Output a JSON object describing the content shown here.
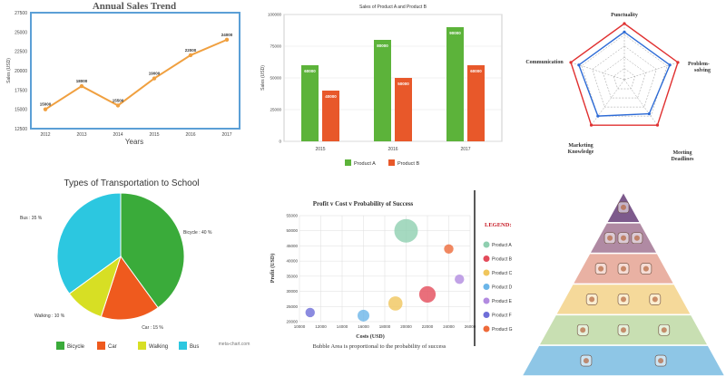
{
  "charts": {
    "line": {
      "chart_data": {
        "type": "line",
        "title": "Annual Sales Trend",
        "xlabel": "Years",
        "ylabel": "Sales (USD)",
        "categories": [
          "2012",
          "2013",
          "2014",
          "2015",
          "2016",
          "2017"
        ],
        "values": [
          15000,
          18000,
          15500,
          19000,
          22000,
          24000
        ],
        "value_labels": [
          "15000",
          "18000",
          "15500",
          "19000",
          "22000",
          "24000"
        ],
        "ylim": [
          12500,
          27500
        ],
        "yticks": [
          "12500",
          "15000",
          "17500",
          "20000",
          "22500",
          "25000",
          "27500"
        ],
        "grid": false,
        "color": "#f0a040"
      }
    },
    "bar": {
      "chart_data": {
        "type": "bar",
        "title": "Sales of Product A and Product B",
        "ylabel": "Sales (USD)",
        "categories": [
          "2015",
          "2016",
          "2017"
        ],
        "series": [
          {
            "name": "Product A",
            "values": [
              60000,
              80000,
              90000
            ],
            "labels": [
              "60000",
              "80000",
              "90000"
            ],
            "color": "#5cb33a"
          },
          {
            "name": "Product B",
            "values": [
              40000,
              50000,
              60000
            ],
            "labels": [
              "40000",
              "50000",
              "60000"
            ],
            "color": "#e8582a"
          }
        ],
        "ylim": [
          0,
          100000
        ],
        "yticks": [
          "0",
          "25000",
          "50000",
          "75000",
          "100000"
        ],
        "legend": "bottom"
      }
    },
    "radar": {
      "chart_data": {
        "type": "radar",
        "axes": [
          "Punctuality",
          "Problem-solving",
          "Meeting Deadlines",
          "Marketing Knowledge",
          "Communication"
        ],
        "series": [
          {
            "values": [
              1.0,
              1.0,
              1.0,
              1.0,
              1.0
            ],
            "color": "#e03030"
          },
          {
            "values": [
              0.85,
              0.85,
              0.75,
              0.8,
              0.85
            ],
            "color": "#2d6bd6"
          }
        ],
        "rings": 5
      }
    },
    "pie": {
      "chart_data": {
        "type": "pie",
        "title": "Types of Transportation to School",
        "slices": [
          {
            "name": "Bicycle",
            "value": 40,
            "label": "Bicycle : 40 %",
            "color": "#3aab3a"
          },
          {
            "name": "Car",
            "value": 15,
            "label": "Car : 15 %",
            "color": "#ef5a1e"
          },
          {
            "name": "Walking",
            "value": 10,
            "label": "Walking : 10 %",
            "color": "#d7df24"
          },
          {
            "name": "Bus",
            "value": 35,
            "label": "Bus : 35 %",
            "color": "#2cc7e0"
          }
        ],
        "legend": "bottom",
        "credit": "meta-chart.com"
      }
    },
    "bubble": {
      "chart_data": {
        "type": "scatter",
        "title": "Profit v Cost v Probability of Success",
        "subtitle": "Bubble Area is proportional to the probability of success",
        "xlabel": "Costs (USD)",
        "ylabel": "Profit (USD)",
        "xlim": [
          10000,
          26000
        ],
        "ylim": [
          20000,
          55000
        ],
        "xticks": [
          "10000",
          "12000",
          "14000",
          "16000",
          "18000",
          "20000",
          "22000",
          "24000",
          "26000"
        ],
        "yticks": [
          "20000",
          "25000",
          "30000",
          "35000",
          "40000",
          "45000",
          "50000",
          "55000"
        ],
        "legend_title": "LEGEND:",
        "points": [
          {
            "name": "Product A",
            "x": 20000,
            "y": 50000,
            "size": 10,
            "color": "#8fcfb0"
          },
          {
            "name": "Product B",
            "x": 22000,
            "y": 29000,
            "size": 7,
            "color": "#e34b5a"
          },
          {
            "name": "Product C",
            "x": 19000,
            "y": 26000,
            "size": 6,
            "color": "#f0c65c"
          },
          {
            "name": "Product D",
            "x": 16000,
            "y": 22000,
            "size": 5,
            "color": "#6bb5e8"
          },
          {
            "name": "Product E",
            "x": 25000,
            "y": 34000,
            "size": 4,
            "color": "#b28be0"
          },
          {
            "name": "Product F",
            "x": 11000,
            "y": 23000,
            "size": 4,
            "color": "#6e6ed8"
          },
          {
            "name": "Product G",
            "x": 24000,
            "y": 44000,
            "size": 4,
            "color": "#ee6a3a"
          }
        ]
      }
    }
  },
  "food_pyramid": {
    "tiers": [
      {
        "color": "#7d5a8c",
        "items": [
          "bottle-icon"
        ]
      },
      {
        "color": "#b08aa3",
        "items": [
          "honey-icon",
          "oil-bottle-icon",
          "butter-icon"
        ]
      },
      {
        "color": "#e9b1a3",
        "items": [
          "sausage-icon",
          "egg-icon",
          "nuts-icon"
        ]
      },
      {
        "color": "#f5d99a",
        "items": [
          "cheese-icon",
          "milk-icon",
          "yogurt-icon"
        ]
      },
      {
        "color": "#c8dfb2",
        "items": [
          "grains-icon",
          "bread-icon",
          "pasta-icon"
        ]
      },
      {
        "color": "#8ec6e6",
        "items": [
          "vegetables-icon",
          "fruits-icon"
        ]
      }
    ]
  }
}
